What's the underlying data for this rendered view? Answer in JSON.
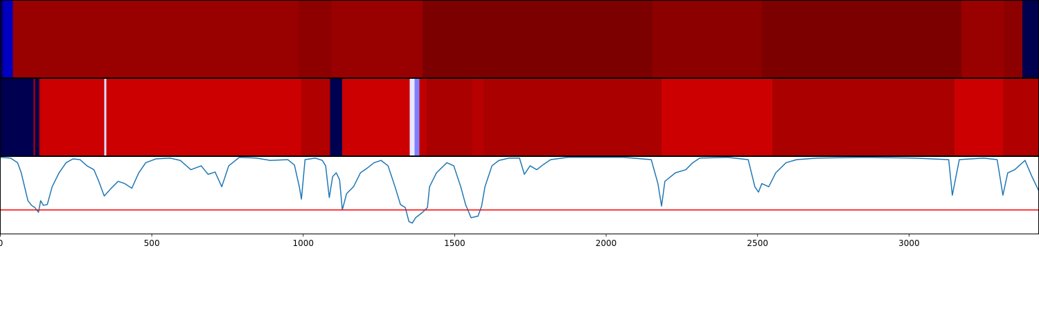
{
  "chart_data": [
    {
      "type": "strip",
      "xlim": [
        0,
        3428
      ],
      "edges": [
        0,
        9,
        41,
        985,
        1093,
        1394,
        2153,
        2514,
        3173,
        3312,
        3374,
        3428
      ],
      "colors": [
        "#00006a",
        "#0000c0",
        "#990000",
        "#8e0000",
        "#990000",
        "#7d0000",
        "#8c0000",
        "#7d0000",
        "#990000",
        "#8c0000",
        "#00004f"
      ]
    },
    {
      "type": "strip",
      "xlim": [
        0,
        3428
      ],
      "edges": [
        0,
        110,
        114,
        128,
        133,
        343,
        350,
        994,
        1088,
        1129,
        1351,
        1367,
        1383,
        1408,
        1559,
        1595,
        2183,
        2549,
        3150,
        3310,
        3428
      ],
      "colors": [
        "#000050",
        "#c00000",
        "#000050",
        "#b00000",
        "#cc0000",
        "#e0e0ff",
        "#cc0000",
        "#b00000",
        "#000050",
        "#cc0000",
        "#e8e8ff",
        "#8080ff",
        "#c00000",
        "#aa0000",
        "#b80000",
        "#aa0000",
        "#cc0000",
        "#aa0000",
        "#cc0000",
        "#b00000"
      ]
    },
    {
      "type": "line",
      "xlim": [
        0,
        3428
      ],
      "ylim": [
        0,
        1
      ],
      "xticks": [
        0,
        500,
        1000,
        1500,
        2000,
        2500,
        3000
      ],
      "color": "#1f77b4",
      "threshold": {
        "value": 0.31,
        "color": "#ff0000"
      },
      "x": [
        0,
        34,
        57,
        69,
        80,
        91,
        103,
        114,
        126,
        133,
        142,
        155,
        171,
        194,
        217,
        240,
        263,
        286,
        309,
        325,
        343,
        366,
        389,
        411,
        434,
        457,
        480,
        514,
        560,
        594,
        629,
        663,
        686,
        709,
        731,
        754,
        789,
        846,
        891,
        949,
        971,
        987,
        994,
        1006,
        1040,
        1063,
        1074,
        1086,
        1097,
        1109,
        1120,
        1129,
        1143,
        1166,
        1189,
        1211,
        1234,
        1257,
        1280,
        1303,
        1321,
        1337,
        1349,
        1360,
        1371,
        1394,
        1410,
        1417,
        1440,
        1474,
        1497,
        1520,
        1536,
        1554,
        1577,
        1589,
        1600,
        1623,
        1646,
        1680,
        1714,
        1730,
        1749,
        1771,
        1794,
        1817,
        1874,
        2057,
        2149,
        2171,
        2183,
        2194,
        2229,
        2263,
        2286,
        2309,
        2400,
        2469,
        2491,
        2503,
        2514,
        2537,
        2560,
        2594,
        2629,
        2697,
        2857,
        3017,
        3131,
        3143,
        3166,
        3246,
        3291,
        3310,
        3326,
        3349,
        3383,
        3406,
        3428
      ],
      "values": [
        0.99,
        0.98,
        0.92,
        0.79,
        0.61,
        0.43,
        0.37,
        0.34,
        0.28,
        0.43,
        0.37,
        0.38,
        0.61,
        0.79,
        0.92,
        0.97,
        0.96,
        0.88,
        0.83,
        0.68,
        0.49,
        0.59,
        0.68,
        0.65,
        0.59,
        0.79,
        0.92,
        0.97,
        0.98,
        0.95,
        0.83,
        0.88,
        0.77,
        0.8,
        0.61,
        0.88,
        0.99,
        0.98,
        0.95,
        0.96,
        0.89,
        0.61,
        0.45,
        0.96,
        0.98,
        0.95,
        0.88,
        0.47,
        0.74,
        0.79,
        0.7,
        0.31,
        0.52,
        0.61,
        0.79,
        0.85,
        0.92,
        0.95,
        0.88,
        0.61,
        0.38,
        0.34,
        0.16,
        0.14,
        0.21,
        0.28,
        0.34,
        0.61,
        0.79,
        0.92,
        0.88,
        0.61,
        0.38,
        0.21,
        0.23,
        0.36,
        0.61,
        0.88,
        0.95,
        0.98,
        0.98,
        0.77,
        0.88,
        0.83,
        0.9,
        0.96,
        0.99,
        0.99,
        0.96,
        0.65,
        0.36,
        0.68,
        0.79,
        0.83,
        0.92,
        0.98,
        0.99,
        0.96,
        0.61,
        0.54,
        0.65,
        0.61,
        0.79,
        0.92,
        0.96,
        0.98,
        0.99,
        0.98,
        0.96,
        0.5,
        0.96,
        0.98,
        0.96,
        0.5,
        0.79,
        0.83,
        0.95,
        0.74,
        0.56
      ]
    }
  ]
}
